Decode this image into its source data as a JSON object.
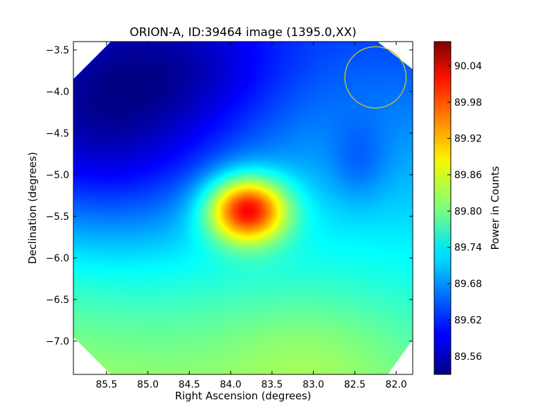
{
  "chart_data": {
    "type": "heatmap",
    "title": "ORION-A, ID:39464 image (1395.0,XX)",
    "xlabel": "Right Ascension (degrees)",
    "ylabel": "Declination (degrees)",
    "xlim": [
      85.9,
      81.8
    ],
    "ylim": [
      -7.4,
      -3.4
    ],
    "x_ticks": [
      {
        "value": 85.5,
        "label": "85.5"
      },
      {
        "value": 85.0,
        "label": "85.0"
      },
      {
        "value": 84.5,
        "label": "84.5"
      },
      {
        "value": 84.0,
        "label": "84.0"
      },
      {
        "value": 83.5,
        "label": "83.5"
      },
      {
        "value": 83.0,
        "label": "83.0"
      },
      {
        "value": 82.5,
        "label": "82.5"
      },
      {
        "value": 82.0,
        "label": "82.0"
      }
    ],
    "y_ticks": [
      {
        "value": -3.5,
        "label": "−3.5"
      },
      {
        "value": -4.0,
        "label": "−4.0"
      },
      {
        "value": -4.5,
        "label": "−4.5"
      },
      {
        "value": -5.0,
        "label": "−5.0"
      },
      {
        "value": -5.5,
        "label": "−5.5"
      },
      {
        "value": -6.0,
        "label": "−6.0"
      },
      {
        "value": -6.5,
        "label": "−6.5"
      },
      {
        "value": -7.0,
        "label": "−7.0"
      }
    ],
    "colorbar": {
      "label": "Power in Counts",
      "range": [
        89.53,
        90.08
      ],
      "colormap": "jet",
      "ticks": [
        {
          "value": 89.56,
          "label": "89.56"
        },
        {
          "value": 89.62,
          "label": "89.62"
        },
        {
          "value": 89.68,
          "label": "89.68"
        },
        {
          "value": 89.74,
          "label": "89.74"
        },
        {
          "value": 89.8,
          "label": "89.80"
        },
        {
          "value": 89.86,
          "label": "89.86"
        },
        {
          "value": 89.92,
          "label": "89.92"
        },
        {
          "value": 89.98,
          "label": "89.98"
        },
        {
          "value": 90.04,
          "label": "90.04"
        }
      ]
    },
    "field": {
      "base": 89.745,
      "gradient_per_deg": {
        "ra": 0.026,
        "dec": 0.038
      },
      "components": [
        {
          "ra": 83.8,
          "dec": -5.42,
          "sigma_ra": 0.34,
          "sigma_dec": 0.28,
          "amplitude": 0.31
        },
        {
          "ra": 85.6,
          "dec": -4.4,
          "sigma_ra": 1.2,
          "sigma_dec": 1.0,
          "amplitude": -0.155
        },
        {
          "ra": 84.4,
          "dec": -3.7,
          "sigma_ra": 0.8,
          "sigma_dec": 0.5,
          "amplitude": -0.04
        },
        {
          "ra": 82.45,
          "dec": -4.85,
          "sigma_ra": 0.25,
          "sigma_dec": 0.35,
          "amplitude": -0.04
        },
        {
          "ra": 83.0,
          "dec": -7.1,
          "sigma_ra": 0.8,
          "sigma_dec": 0.5,
          "amplitude": 0.03
        }
      ]
    },
    "beam_circle": {
      "ra": 82.25,
      "dec": -3.83,
      "radius_deg": 0.37,
      "color": "#bcbc2a"
    },
    "grid": false,
    "masked_corners": true
  }
}
